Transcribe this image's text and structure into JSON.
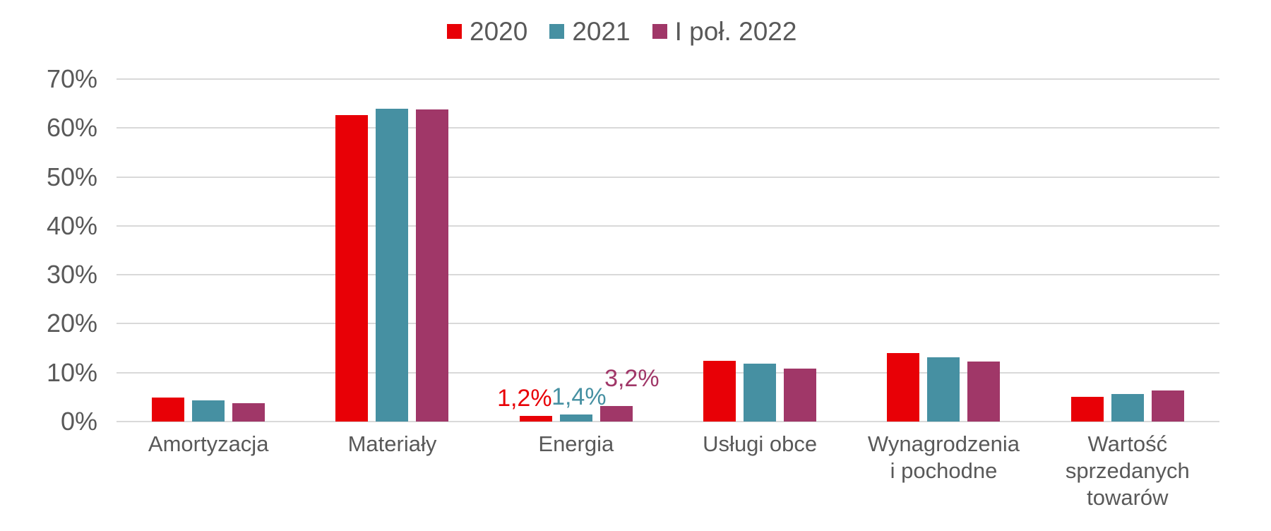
{
  "chart_data": {
    "type": "bar",
    "title": "",
    "categories": [
      "Amortyzacja",
      "Materiały",
      "Energia",
      "Usługi obce",
      "Wynagrodzenia\ni pochodne",
      "Wartość\nsprzedanych\ntowarów"
    ],
    "series": [
      {
        "name": "2020",
        "color": "#e80006",
        "values": [
          4.9,
          62.6,
          1.2,
          12.4,
          14.0,
          5.0
        ]
      },
      {
        "name": "2021",
        "color": "#4690a2",
        "values": [
          4.3,
          64.0,
          1.4,
          11.8,
          13.1,
          5.6
        ]
      },
      {
        "name": "I poł. 2022",
        "color": "#a03768",
        "values": [
          3.7,
          63.8,
          3.2,
          10.8,
          12.2,
          6.3
        ]
      }
    ],
    "data_labels": {
      "category": "Energia",
      "category_index": 2,
      "labels": [
        "1,2%",
        "1,4%",
        "3,2%"
      ]
    },
    "y_axis": {
      "ticks": [
        "70%",
        "60%",
        "50%",
        "40%",
        "30%",
        "20%",
        "10%",
        "0%"
      ],
      "min": 0,
      "max": 70,
      "unit": "%"
    },
    "grid": true,
    "legend_position": "top",
    "decimal_separator": ","
  },
  "style": {
    "text_color": "#595959",
    "grid_color": "#d9d9d9",
    "background": "#ffffff"
  }
}
